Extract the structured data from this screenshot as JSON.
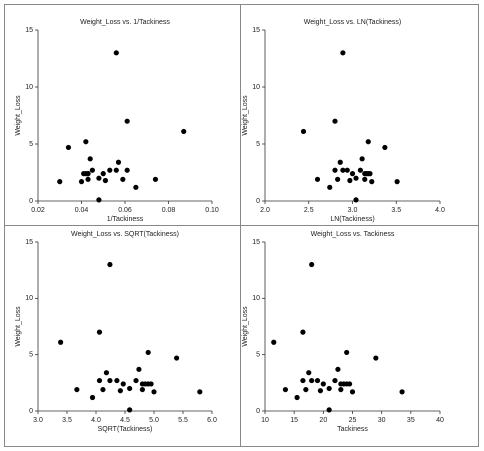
{
  "chart_data": [
    {
      "type": "scatter",
      "title": "Weight_Loss vs. 1/Tackiness",
      "x_label": "1/Tackiness",
      "y_label": "Weight_Loss",
      "color": "#000000",
      "x": [
        0.087,
        0.074,
        0.065,
        0.061,
        0.061,
        0.059,
        0.057,
        0.056,
        0.056,
        0.053,
        0.051,
        0.05,
        0.048,
        0.048,
        0.045,
        0.044,
        0.043,
        0.043,
        0.043,
        0.042,
        0.042,
        0.041,
        0.04,
        0.034,
        0.03
      ],
      "y": [
        6.1,
        1.9,
        1.2,
        7.0,
        2.7,
        1.9,
        3.4,
        13,
        2.7,
        2.7,
        1.8,
        2.4,
        0.1,
        2.0,
        2.7,
        3.7,
        1.9,
        2.4,
        2.4,
        5.2,
        2.4,
        2.4,
        1.7,
        4.7,
        1.7
      ],
      "xlim": [
        0.02,
        0.1
      ],
      "ylim": [
        0,
        15
      ],
      "xticks": [
        0.02,
        0.04,
        0.06,
        0.08,
        {
          "value": 0.1,
          "label": "0.10"
        }
      ],
      "yticks": [
        0,
        5,
        10,
        15
      ]
    },
    {
      "type": "scatter",
      "title": "Weight_Loss vs. LN(Tackiness)",
      "x_label": "LN(Tackiness)",
      "y_label": "Weight_Loss",
      "color": "#000000",
      "x": [
        2.44,
        2.6,
        2.74,
        2.8,
        2.8,
        2.83,
        2.86,
        2.89,
        2.89,
        2.94,
        2.97,
        3.0,
        3.04,
        3.04,
        3.09,
        3.11,
        3.14,
        3.14,
        3.16,
        3.18,
        3.18,
        3.2,
        3.22,
        3.37,
        3.51
      ],
      "y": [
        6.1,
        1.9,
        1.2,
        7.0,
        2.7,
        1.9,
        3.4,
        13,
        2.7,
        2.7,
        1.8,
        2.4,
        0.1,
        2.0,
        2.7,
        3.7,
        1.9,
        2.4,
        2.4,
        5.2,
        2.4,
        2.4,
        1.7,
        4.7,
        1.7
      ],
      "xlim": [
        2,
        4
      ],
      "ylim": [
        0,
        15
      ],
      "xticks": [
        {
          "value": 2,
          "label": "2.0"
        },
        2.5,
        {
          "value": 3,
          "label": "3.0"
        },
        3.5,
        {
          "value": 4,
          "label": "4.0"
        }
      ],
      "yticks": [
        0,
        5,
        10,
        15
      ]
    },
    {
      "type": "scatter",
      "title": "Weight_Loss vs. SQRT(Tackiness)",
      "x_label": "SQRT(Tackiness)",
      "y_label": "Weight_Loss",
      "color": "#000000",
      "x": [
        3.39,
        3.67,
        3.94,
        4.06,
        4.06,
        4.12,
        4.18,
        4.24,
        4.24,
        4.36,
        4.42,
        4.47,
        4.58,
        4.58,
        4.69,
        4.74,
        4.8,
        4.8,
        4.85,
        4.9,
        4.9,
        4.95,
        5.0,
        5.39,
        5.79
      ],
      "y": [
        6.1,
        1.9,
        1.2,
        7.0,
        2.7,
        1.9,
        3.4,
        13,
        2.7,
        2.7,
        1.8,
        2.4,
        0.1,
        2.0,
        2.7,
        3.7,
        1.9,
        2.4,
        2.4,
        5.2,
        2.4,
        2.4,
        1.7,
        4.7,
        1.7
      ],
      "xlim": [
        3,
        6
      ],
      "ylim": [
        0,
        15
      ],
      "xticks": [
        {
          "value": 3,
          "label": "3.0"
        },
        3.5,
        {
          "value": 4,
          "label": "4.0"
        },
        4.5,
        {
          "value": 5,
          "label": "5.0"
        },
        5.5,
        {
          "value": 6,
          "label": "6.0"
        }
      ],
      "yticks": [
        0,
        5,
        10,
        15
      ]
    },
    {
      "type": "scatter",
      "title": "Weight_Loss vs. Tackiness",
      "x_label": "Tackiness",
      "y_label": "Weight_Loss",
      "color": "#000000",
      "x": [
        11.5,
        13.5,
        15.5,
        16.5,
        16.5,
        17,
        17.5,
        18,
        18,
        19,
        19.5,
        20,
        21,
        21,
        22,
        22.5,
        23,
        23,
        23.5,
        24,
        24,
        24.5,
        25,
        29,
        33.5
      ],
      "y": [
        6.1,
        1.9,
        1.2,
        7.0,
        2.7,
        1.9,
        3.4,
        13,
        2.7,
        2.7,
        1.8,
        2.4,
        0.1,
        2.0,
        2.7,
        3.7,
        1.9,
        2.4,
        2.4,
        5.2,
        2.4,
        2.4,
        1.7,
        4.7,
        1.7
      ],
      "xlim": [
        10,
        40
      ],
      "ylim": [
        0,
        15
      ],
      "xticks": [
        10,
        15,
        20,
        25,
        30,
        35,
        40
      ],
      "yticks": [
        0,
        5,
        10,
        15
      ]
    }
  ]
}
